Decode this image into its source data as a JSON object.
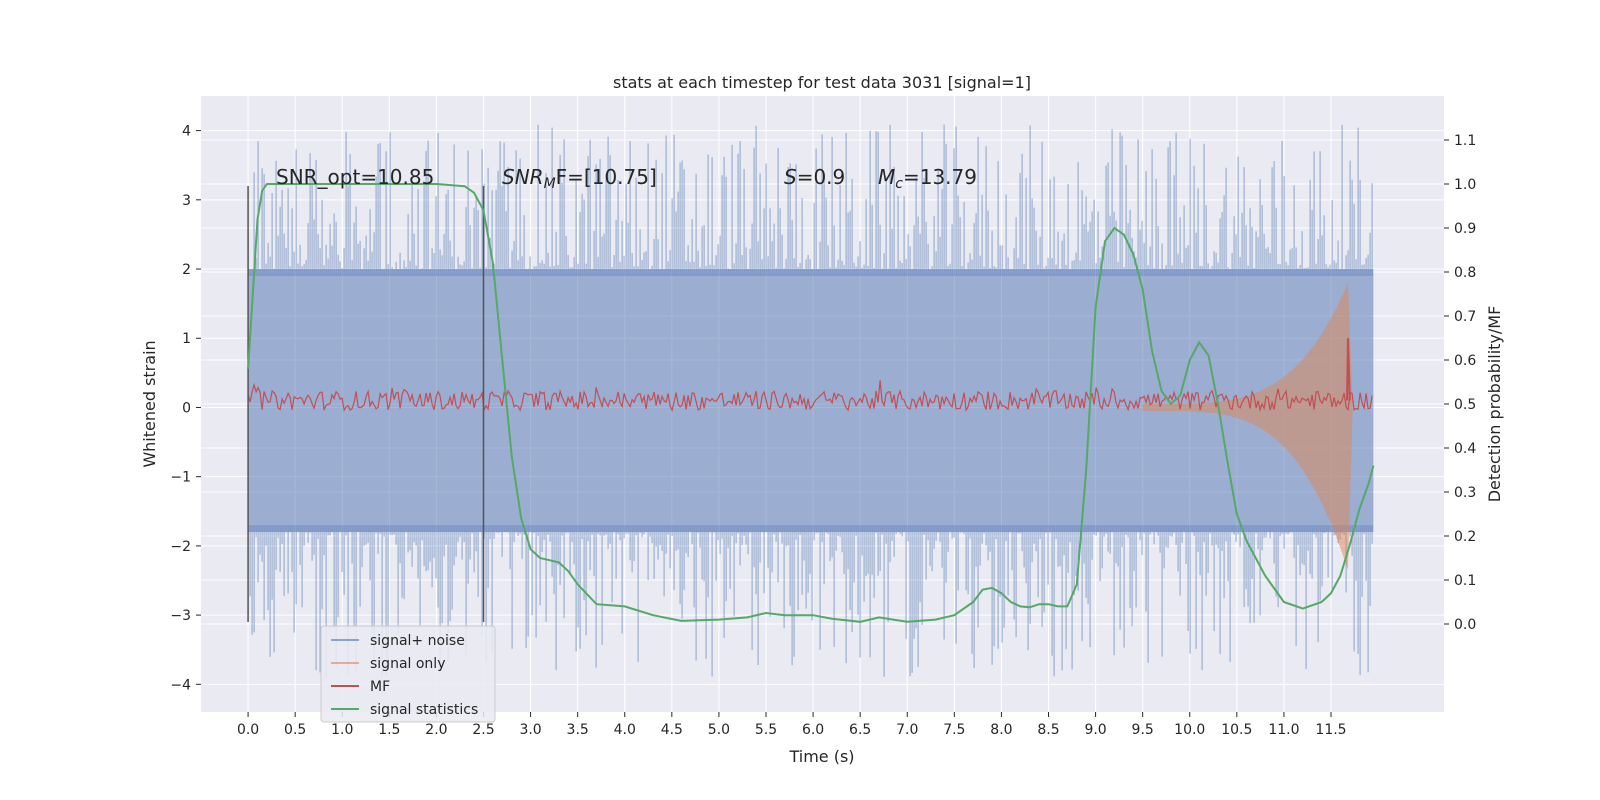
{
  "chart_data": {
    "type": "line",
    "title": "stats at each timestep for test data 3031 [signal=1]",
    "xlabel": "Time (s)",
    "ylabel": "Whitened strain",
    "ylabel_right": "Detection probability/MF",
    "xlim": [
      -0.5,
      12.7
    ],
    "ylim": [
      -4.4,
      4.5
    ],
    "ylim_right": [
      -0.2,
      1.2
    ],
    "x_ticks": [
      "0.0",
      "0.5",
      "1.0",
      "1.5",
      "2.0",
      "2.5",
      "3.0",
      "3.5",
      "4.0",
      "4.5",
      "5.0",
      "5.5",
      "6.0",
      "6.5",
      "7.0",
      "7.5",
      "8.0",
      "8.5",
      "9.0",
      "9.5",
      "10.0",
      "10.5",
      "11.0",
      "11.5"
    ],
    "y_ticks": [
      "4",
      "3",
      "2",
      "1",
      "0",
      "−1",
      "−2",
      "−3",
      "−4"
    ],
    "y_ticks_right": [
      "1.1",
      "1.0",
      "0.9",
      "0.8",
      "0.7",
      "0.6",
      "0.5",
      "0.4",
      "0.3",
      "0.2",
      "0.1",
      "0.0"
    ],
    "grid": true,
    "legend_position": "lower-left",
    "annotations": {
      "snr_opt": "SNR_opt=10.85",
      "snr_mf_sym": "SNR",
      "snr_mf_sub": "M",
      "snr_mf_rest": "F=[10.75]",
      "s_sym": "S",
      "s_rest": "=0.9",
      "mc_sym": "M",
      "mc_sub": "c",
      "mc_rest": "=13.79"
    },
    "vertical_markers": [
      0.0,
      2.5
    ],
    "noise": {
      "t_start": 0.0,
      "t_end": 11.95,
      "band": [
        -1.8,
        2.0
      ],
      "extremes": [
        -3.9,
        4.1
      ]
    },
    "mf_level": 0.1,
    "signal_envelope": {
      "t_start": 9.5,
      "t_merger": 11.68,
      "peak": [
        -2.3,
        1.75
      ]
    },
    "series": [
      {
        "name": "signal+ noise",
        "color": "#4c72b0"
      },
      {
        "name": "signal only",
        "color": "#dd8452"
      },
      {
        "name": "MF",
        "color": "#c44e52"
      },
      {
        "name": "signal statistics",
        "color": "#55a868",
        "axis": "right",
        "x": [
          0.0,
          0.05,
          0.1,
          0.15,
          0.2,
          0.4,
          1.0,
          2.0,
          2.3,
          2.4,
          2.5,
          2.6,
          2.7,
          2.8,
          2.9,
          3.0,
          3.1,
          3.2,
          3.3,
          3.4,
          3.5,
          3.7,
          4.0,
          4.3,
          4.6,
          5.0,
          5.3,
          5.5,
          5.7,
          6.0,
          6.2,
          6.5,
          6.7,
          7.0,
          7.3,
          7.5,
          7.7,
          7.8,
          7.9,
          8.0,
          8.1,
          8.2,
          8.3,
          8.4,
          8.5,
          8.6,
          8.7,
          8.8,
          8.9,
          9.0,
          9.1,
          9.2,
          9.3,
          9.4,
          9.5,
          9.6,
          9.7,
          9.8,
          9.9,
          10.0,
          10.1,
          10.2,
          10.3,
          10.4,
          10.5,
          10.6,
          10.8,
          11.0,
          11.2,
          11.4,
          11.5,
          11.6,
          11.7,
          11.8,
          11.9,
          11.95
        ],
        "values": [
          0.58,
          0.75,
          0.92,
          0.985,
          1.0,
          1.0,
          1.0,
          1.0,
          0.995,
          0.98,
          0.94,
          0.82,
          0.6,
          0.38,
          0.24,
          0.17,
          0.15,
          0.145,
          0.14,
          0.12,
          0.09,
          0.045,
          0.04,
          0.02,
          0.007,
          0.01,
          0.015,
          0.025,
          0.02,
          0.02,
          0.012,
          0.005,
          0.015,
          0.005,
          0.01,
          0.02,
          0.05,
          0.078,
          0.082,
          0.07,
          0.05,
          0.04,
          0.038,
          0.045,
          0.045,
          0.04,
          0.04,
          0.09,
          0.35,
          0.72,
          0.87,
          0.9,
          0.885,
          0.84,
          0.76,
          0.62,
          0.53,
          0.5,
          0.52,
          0.6,
          0.64,
          0.61,
          0.5,
          0.37,
          0.25,
          0.19,
          0.11,
          0.05,
          0.035,
          0.05,
          0.07,
          0.11,
          0.18,
          0.26,
          0.32,
          0.36
        ]
      }
    ]
  }
}
